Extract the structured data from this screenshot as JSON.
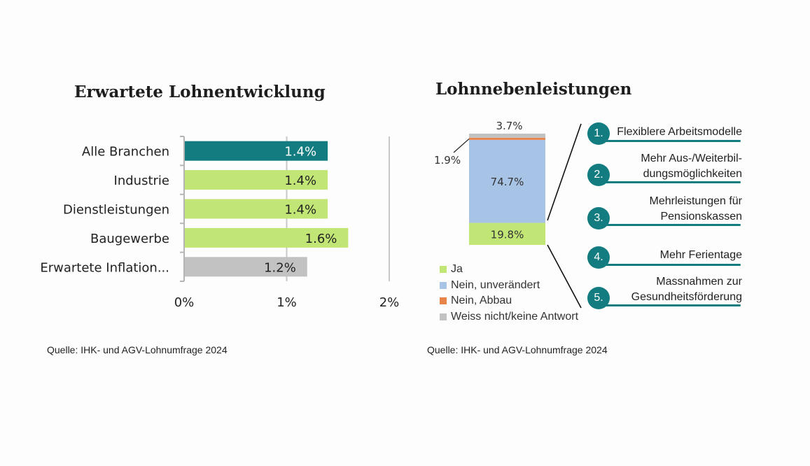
{
  "colors": {
    "teal": "#127c80",
    "light_green": "#c2e675",
    "gray": "#c2c2c2",
    "blue": "#a7c3e6",
    "orange": "#e8844a"
  },
  "left": {
    "title": "Erwartete Lohnentwicklung",
    "source": "Quelle: IHK- und AGV-Lohnumfrage 2024"
  },
  "right": {
    "title": "Lohnnebenleistungen",
    "source": "Quelle: IHK- und AGV-Lohnumfrage 2024",
    "items": [
      {
        "num": "1.",
        "lines": [
          "Flexiblere Arbeitsmodelle"
        ]
      },
      {
        "num": "2.",
        "lines": [
          "Mehr Aus-/Weiterbil-",
          "dungsmöglichkeiten"
        ]
      },
      {
        "num": "3.",
        "lines": [
          "Mehrleistungen für",
          "Pensionskassen"
        ]
      },
      {
        "num": "4.",
        "lines": [
          "Mehr Ferientage"
        ]
      },
      {
        "num": "5.",
        "lines": [
          "Massnahmen zur",
          "Gesundheitsförderung"
        ]
      }
    ]
  },
  "chart_data": [
    {
      "type": "bar",
      "orientation": "horizontal",
      "title": "Erwartete Lohnentwicklung",
      "categories": [
        "Alle Branchen",
        "Industrie",
        "Dienstleistungen",
        "Baugewerbe",
        "Erwartete Inflation..."
      ],
      "values": [
        1.4,
        1.4,
        1.4,
        1.6,
        1.2
      ],
      "data_labels": [
        "1.4%",
        "1.4%",
        "1.4%",
        "1.6%",
        "1.2%"
      ],
      "bar_colors": [
        "#127c80",
        "#c2e675",
        "#c2e675",
        "#c2e675",
        "#c2c2c2"
      ],
      "xlim": [
        0,
        2
      ],
      "xticks": [
        "0%",
        "1%",
        "2%"
      ],
      "grid": true
    },
    {
      "type": "bar",
      "orientation": "stacked-single",
      "title": "Lohnnebenleistungen",
      "series": [
        {
          "name": "Ja",
          "value": 19.8,
          "label": "19.8%",
          "color": "#c2e675"
        },
        {
          "name": "Nein, unverändert",
          "value": 74.7,
          "label": "74.7%",
          "color": "#a7c3e6"
        },
        {
          "name": "Nein, Abbau",
          "value": 1.9,
          "label": "1.9%",
          "color": "#e8844a"
        },
        {
          "name": "Weiss nicht/keine Antwort",
          "value": 3.7,
          "label": "3.7%",
          "color": "#c2c2c2"
        }
      ],
      "legend": "bottom"
    }
  ]
}
